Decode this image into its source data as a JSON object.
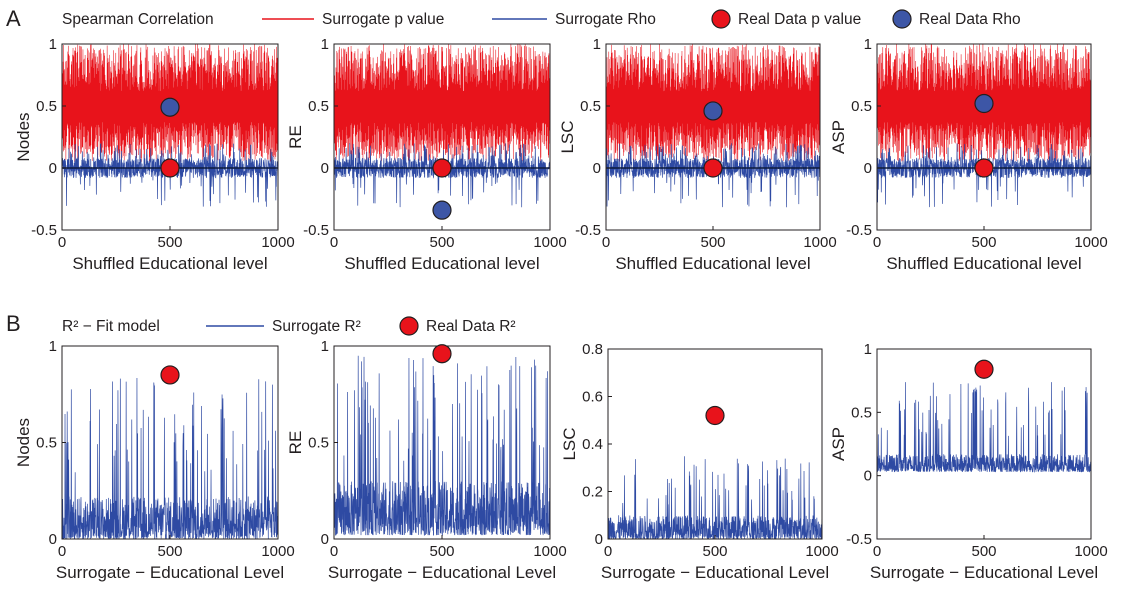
{
  "panels": {
    "A": {
      "letter": "A",
      "legend": {
        "title": "Spearman Correlation",
        "items": [
          {
            "label": "Surrogate p value",
            "kind": "line",
            "color": "#e8131b"
          },
          {
            "label": "Surrogate Rho",
            "kind": "line",
            "color": "#2e4aa3"
          },
          {
            "label": "Real  Data p value",
            "kind": "dot",
            "color": "#e8131b"
          },
          {
            "label": "Real Data Rho",
            "kind": "dot",
            "color": "#3d56a6"
          }
        ]
      }
    },
    "B": {
      "letter": "B",
      "legend": {
        "title": "R² − Fit model",
        "items": [
          {
            "label": "Surrogate R²",
            "kind": "line",
            "color": "#2e4aa3"
          },
          {
            "label": "Real Data R²",
            "kind": "dot",
            "color": "#e8131b"
          }
        ]
      }
    }
  },
  "colors": {
    "pvalue": "#e8131b",
    "rho": "#2e4aa3",
    "rho_dot": "#3d56a6",
    "axis": "#231f20"
  },
  "chart_data": [
    {
      "type": "line",
      "panel": "A",
      "ylabel": "Nodes",
      "xlabel": "Shuffled Educational level",
      "xlim": [
        0,
        1000
      ],
      "ylim": [
        -0.5,
        1
      ],
      "xticks": [
        0,
        500,
        1000
      ],
      "yticks": [
        -0.5,
        0,
        0.5,
        1
      ],
      "series": [
        {
          "name": "Surrogate p value",
          "kind": "surrogate_p",
          "n": 1000,
          "color": "#e8131b"
        },
        {
          "name": "Surrogate Rho",
          "kind": "surrogate_rho",
          "n": 1000,
          "color": "#2e4aa3"
        }
      ],
      "real_data": [
        {
          "name": "Real Data Rho",
          "x": 500,
          "y": 0.49,
          "color": "#3d56a6"
        },
        {
          "name": "Real  Data p value",
          "x": 500,
          "y": 0.0,
          "color": "#e8131b"
        }
      ]
    },
    {
      "type": "line",
      "panel": "A",
      "ylabel": "RE",
      "xlabel": "Shuffled Educational level",
      "xlim": [
        0,
        1000
      ],
      "ylim": [
        -0.5,
        1
      ],
      "xticks": [
        0,
        500,
        1000
      ],
      "yticks": [
        -0.5,
        0,
        0.5,
        1
      ],
      "series": [
        {
          "name": "Surrogate p value",
          "kind": "surrogate_p",
          "n": 1000,
          "color": "#e8131b"
        },
        {
          "name": "Surrogate Rho",
          "kind": "surrogate_rho",
          "n": 1000,
          "color": "#2e4aa3"
        }
      ],
      "real_data": [
        {
          "name": "Real Data Rho",
          "x": 500,
          "y": -0.34,
          "color": "#3d56a6"
        },
        {
          "name": "Real  Data p value",
          "x": 500,
          "y": 0.0,
          "color": "#e8131b"
        }
      ]
    },
    {
      "type": "line",
      "panel": "A",
      "ylabel": "LSC",
      "xlabel": "Shuffled Educational level",
      "xlim": [
        0,
        1000
      ],
      "ylim": [
        -0.5,
        1
      ],
      "xticks": [
        0,
        500,
        1000
      ],
      "yticks": [
        -0.5,
        0,
        0.5,
        1
      ],
      "series": [
        {
          "name": "Surrogate p value",
          "kind": "surrogate_p",
          "n": 1000,
          "color": "#e8131b"
        },
        {
          "name": "Surrogate Rho",
          "kind": "surrogate_rho",
          "n": 1000,
          "color": "#2e4aa3"
        }
      ],
      "real_data": [
        {
          "name": "Real Data Rho",
          "x": 500,
          "y": 0.46,
          "color": "#3d56a6"
        },
        {
          "name": "Real  Data p value",
          "x": 500,
          "y": 0.0,
          "color": "#e8131b"
        }
      ]
    },
    {
      "type": "line",
      "panel": "A",
      "ylabel": "ASP",
      "xlabel": "Shuffled Educational level",
      "xlim": [
        0,
        1000
      ],
      "ylim": [
        -0.5,
        1
      ],
      "xticks": [
        0,
        500,
        1000
      ],
      "yticks": [
        -0.5,
        0,
        0.5,
        1
      ],
      "series": [
        {
          "name": "Surrogate p value",
          "kind": "surrogate_p",
          "n": 1000,
          "color": "#e8131b"
        },
        {
          "name": "Surrogate Rho",
          "kind": "surrogate_rho",
          "n": 1000,
          "color": "#2e4aa3"
        }
      ],
      "real_data": [
        {
          "name": "Real Data Rho",
          "x": 500,
          "y": 0.52,
          "color": "#3d56a6"
        },
        {
          "name": "Real  Data p value",
          "x": 500,
          "y": 0.0,
          "color": "#e8131b"
        }
      ]
    },
    {
      "type": "line",
      "panel": "B",
      "ylabel": "Nodes",
      "xlabel": "Surrogate − Educational Level",
      "xlim": [
        0,
        1000
      ],
      "ylim": [
        0,
        1
      ],
      "xticks": [
        0,
        500,
        1000
      ],
      "yticks": [
        0,
        0.5,
        1
      ],
      "series": [
        {
          "name": "Surrogate R²",
          "kind": "surrogate_r2",
          "n": 1000,
          "base": 0.0,
          "scale": 0.22,
          "peak": 0.85,
          "color": "#2e4aa3"
        }
      ],
      "real_data": [
        {
          "name": "Real Data R²",
          "x": 500,
          "y": 0.85,
          "color": "#e8131b"
        }
      ]
    },
    {
      "type": "line",
      "panel": "B",
      "ylabel": "RE",
      "xlabel": "Surrogate − Educational Level",
      "xlim": [
        0,
        1000
      ],
      "ylim": [
        0,
        1
      ],
      "xticks": [
        0,
        500,
        1000
      ],
      "yticks": [
        0,
        0.5,
        1
      ],
      "series": [
        {
          "name": "Surrogate R²",
          "kind": "surrogate_r2",
          "n": 1000,
          "base": 0.02,
          "scale": 0.28,
          "peak": 0.95,
          "color": "#2e4aa3"
        }
      ],
      "real_data": [
        {
          "name": "Real Data R²",
          "x": 500,
          "y": 0.96,
          "color": "#e8131b"
        }
      ]
    },
    {
      "type": "line",
      "panel": "B",
      "ylabel": "LSC",
      "xlabel": "Surrogate − Educational Level",
      "xlim": [
        0,
        1000
      ],
      "ylim": [
        0,
        0.8
      ],
      "xticks": [
        0,
        500,
        1000
      ],
      "yticks": [
        0,
        0.2,
        0.4,
        0.6,
        0.8
      ],
      "series": [
        {
          "name": "Surrogate R²",
          "kind": "surrogate_r2",
          "n": 1000,
          "base": 0.0,
          "scale": 0.1,
          "peak": 0.35,
          "color": "#2e4aa3"
        }
      ],
      "real_data": [
        {
          "name": "Real Data R²",
          "x": 500,
          "y": 0.52,
          "color": "#e8131b"
        }
      ]
    },
    {
      "type": "line",
      "panel": "B",
      "ylabel": "ASP",
      "xlabel": "Surrogate − Educational Level",
      "xlim": [
        0,
        1000
      ],
      "ylim": [
        -0.5,
        1
      ],
      "xticks": [
        0,
        500,
        1000
      ],
      "yticks": [
        -0.5,
        0,
        0.5,
        1
      ],
      "series": [
        {
          "name": "Surrogate R²",
          "kind": "surrogate_r2",
          "n": 1000,
          "base": 0.03,
          "scale": 0.14,
          "peak": 0.74,
          "color": "#2e4aa3"
        }
      ],
      "real_data": [
        {
          "name": "Real Data R²",
          "x": 500,
          "y": 0.84,
          "color": "#e8131b"
        }
      ]
    }
  ]
}
